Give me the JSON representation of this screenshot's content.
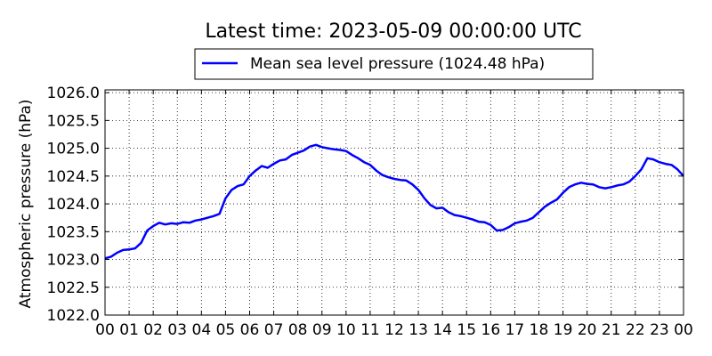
{
  "chart_data": {
    "type": "line",
    "title": "Latest time: 2023-05-09 00:00:00 UTC",
    "xlabel": "",
    "ylabel": "Atmospheric pressure (hPa)",
    "x_ticks": [
      "00",
      "01",
      "02",
      "03",
      "04",
      "05",
      "06",
      "07",
      "08",
      "09",
      "10",
      "11",
      "12",
      "13",
      "14",
      "15",
      "16",
      "17",
      "18",
      "19",
      "20",
      "21",
      "22",
      "23",
      "00"
    ],
    "y_ticks": [
      "1022.0",
      "1022.5",
      "1023.0",
      "1023.5",
      "1024.0",
      "1024.5",
      "1025.0",
      "1025.5",
      "1026.0"
    ],
    "xlim": [
      0,
      24
    ],
    "ylim": [
      1022.0,
      1026.05
    ],
    "grid": true,
    "legend_position": "top-center",
    "series": [
      {
        "name": "Mean sea level pressure (1024.48 hPa)",
        "color": "#0000ff",
        "x": [
          0,
          0.25,
          0.5,
          0.75,
          1.0,
          1.25,
          1.5,
          1.75,
          2.0,
          2.25,
          2.5,
          2.75,
          3.0,
          3.25,
          3.5,
          3.75,
          4.0,
          4.25,
          4.5,
          4.75,
          5.0,
          5.25,
          5.5,
          5.75,
          6.0,
          6.25,
          6.5,
          6.75,
          7.0,
          7.25,
          7.5,
          7.75,
          8.0,
          8.25,
          8.5,
          8.75,
          9.0,
          9.25,
          9.5,
          9.75,
          10.0,
          10.25,
          10.5,
          10.75,
          11.0,
          11.25,
          11.5,
          11.75,
          12.0,
          12.25,
          12.5,
          12.75,
          13.0,
          13.25,
          13.5,
          13.75,
          14.0,
          14.25,
          14.5,
          14.75,
          15.0,
          15.25,
          15.5,
          15.75,
          16.0,
          16.25,
          16.5,
          16.75,
          17.0,
          17.25,
          17.5,
          17.75,
          18.0,
          18.25,
          18.5,
          18.75,
          19.0,
          19.25,
          19.5,
          19.75,
          20.0,
          20.25,
          20.5,
          20.75,
          21.0,
          21.25,
          21.5,
          21.75,
          22.0,
          22.25,
          22.5,
          22.75,
          23.0,
          23.25,
          23.5,
          23.75,
          24.0
        ],
        "y": [
          1023.02,
          1023.05,
          1023.12,
          1023.17,
          1023.18,
          1023.2,
          1023.3,
          1023.52,
          1023.6,
          1023.66,
          1023.63,
          1023.65,
          1023.64,
          1023.67,
          1023.66,
          1023.7,
          1023.72,
          1023.75,
          1023.78,
          1023.82,
          1024.1,
          1024.25,
          1024.32,
          1024.35,
          1024.5,
          1024.6,
          1024.68,
          1024.65,
          1024.72,
          1024.78,
          1024.8,
          1024.88,
          1024.92,
          1024.96,
          1025.03,
          1025.06,
          1025.02,
          1025.0,
          1024.98,
          1024.97,
          1024.95,
          1024.88,
          1024.82,
          1024.75,
          1024.7,
          1024.6,
          1024.52,
          1024.48,
          1024.45,
          1024.43,
          1024.42,
          1024.35,
          1024.25,
          1024.1,
          1023.98,
          1023.92,
          1023.93,
          1023.85,
          1023.8,
          1023.78,
          1023.75,
          1023.72,
          1023.68,
          1023.67,
          1023.62,
          1023.52,
          1023.53,
          1023.58,
          1023.65,
          1023.68,
          1023.7,
          1023.75,
          1023.85,
          1023.95,
          1024.02,
          1024.08,
          1024.2,
          1024.3,
          1024.35,
          1024.38,
          1024.36,
          1024.35,
          1024.3,
          1024.28,
          1024.3,
          1024.33,
          1024.35,
          1024.4,
          1024.5,
          1024.62,
          1024.82,
          1024.8,
          1024.75,
          1024.72,
          1024.7,
          1024.62,
          1024.5
        ]
      }
    ]
  }
}
